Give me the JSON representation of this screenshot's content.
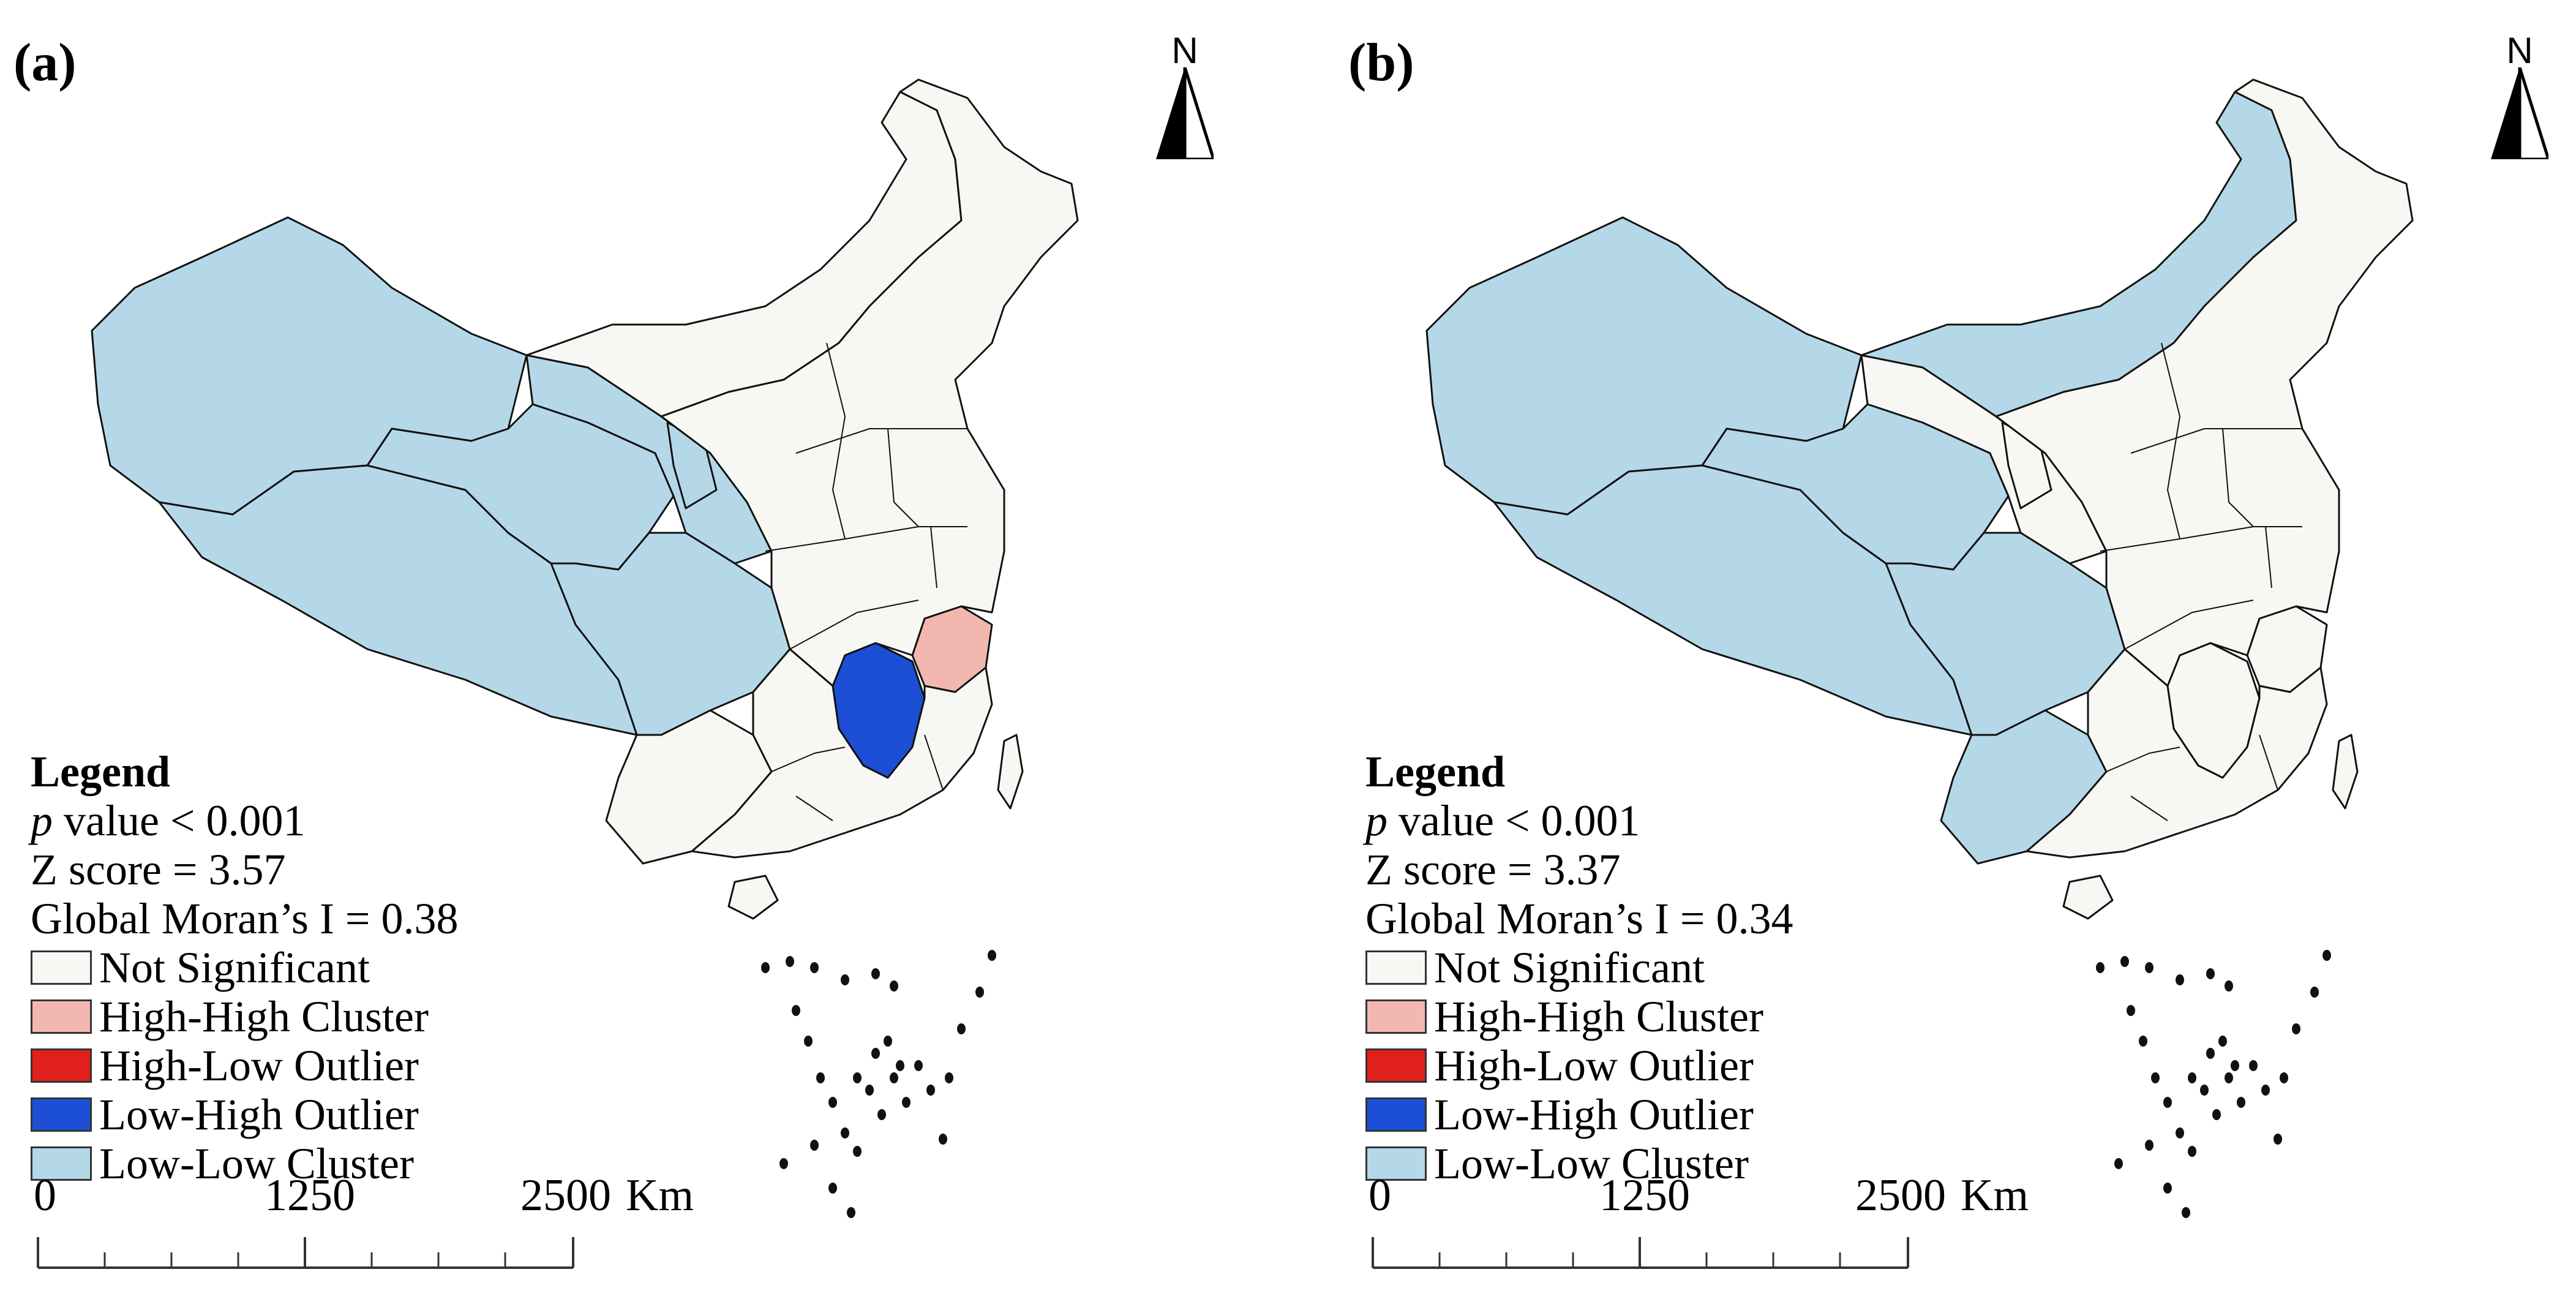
{
  "colors": {
    "not_significant": "#f7f7f3",
    "high_high": "#f2b8b0",
    "high_low": "#e0201b",
    "low_high": "#1c4fd6",
    "low_low": "#b5d8e8",
    "border": "#111111"
  },
  "panels": [
    {
      "label": "(a)",
      "north": "N",
      "legend": {
        "title": "Legend",
        "p_italic": "p",
        "p_rest": " value < 0.001",
        "z": "Z score = 3.57",
        "moran": "Global Moran’s I = 0.38",
        "items": [
          {
            "label": "Not Significant",
            "color": "#f7f7f3"
          },
          {
            "label": "High-High Cluster",
            "color": "#f2b8b0"
          },
          {
            "label": "High-Low Outlier",
            "color": "#e0201b"
          },
          {
            "label": "Low-High Outlier",
            "color": "#1c4fd6"
          },
          {
            "label": "Low-Low Cluster",
            "color": "#b5d8e8"
          }
        ]
      },
      "scale": {
        "t0": "0",
        "t1": "1250",
        "t2": "2500",
        "unit": "Km"
      },
      "low_low_regions": [
        "xinjiang",
        "tibet",
        "qinghai",
        "gansu",
        "sichuan",
        "ningxia"
      ],
      "low_high_regions": [
        "jiangxi"
      ],
      "high_high_regions": [
        "zhejiang"
      ]
    },
    {
      "label": "(b)",
      "north": "N",
      "legend": {
        "title": "Legend",
        "p_italic": "p",
        "p_rest": " value < 0.001",
        "z": "Z score = 3.37",
        "moran": "Global Moran’s I = 0.34",
        "items": [
          {
            "label": "Not Significant",
            "color": "#f7f7f3"
          },
          {
            "label": "High-High Cluster",
            "color": "#f2b8b0"
          },
          {
            "label": "High-Low Outlier",
            "color": "#e0201b"
          },
          {
            "label": "Low-High Outlier",
            "color": "#1c4fd6"
          },
          {
            "label": "Low-Low Cluster",
            "color": "#b5d8e8"
          }
        ]
      },
      "scale": {
        "t0": "0",
        "t1": "1250",
        "t2": "2500",
        "unit": "Km"
      },
      "low_low_regions": [
        "xinjiang",
        "tibet",
        "qinghai",
        "sichuan",
        "yunnan",
        "inner_mongolia"
      ],
      "low_high_regions": [],
      "high_high_regions": []
    }
  ]
}
